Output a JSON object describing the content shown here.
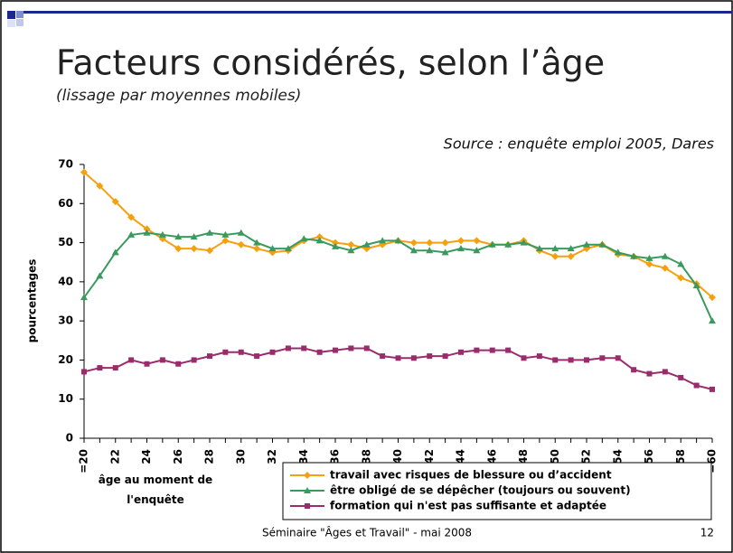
{
  "header": {
    "title": "Facteurs considérés, selon l’âge",
    "subtitle": "(lissage par moyennes mobiles)",
    "source": "Source : enquête emploi 2005, Dares"
  },
  "chart_data": {
    "type": "line",
    "ylabel": "pourcentages",
    "xlabel": "âge au moment de l'enquête",
    "categories": [
      "=20",
      null,
      "22",
      null,
      "24",
      null,
      "26",
      null,
      "28",
      null,
      "30",
      null,
      "32",
      null,
      "34",
      null,
      "36",
      null,
      "38",
      null,
      "40",
      null,
      "42",
      null,
      "44",
      null,
      "46",
      null,
      "48",
      null,
      "50",
      null,
      "52",
      null,
      "54",
      null,
      "56",
      null,
      "58",
      null,
      "=60"
    ],
    "ylim": [
      0,
      70
    ],
    "yticks": [
      0,
      10,
      20,
      30,
      40,
      50,
      60,
      70
    ],
    "legend": "bottom",
    "series": [
      {
        "name": "travail avec risques de blessure ou d’accident",
        "color": "#f5a00f",
        "marker": "diamond",
        "values": [
          68,
          64.5,
          60.5,
          56.5,
          53.5,
          51,
          48.5,
          48.5,
          48,
          50.5,
          49.5,
          48.5,
          47.5,
          48,
          50.5,
          51.5,
          50,
          49.5,
          48.5,
          49.5,
          50.5,
          50,
          50,
          50,
          50.5,
          50.5,
          49.5,
          49.5,
          50.5,
          48,
          46.5,
          46.5,
          48.5,
          49.5,
          47,
          46.5,
          44.5,
          43.5,
          41,
          39.5,
          36
        ]
      },
      {
        "name": "être obligé de se dépêcher (toujours ou souvent)",
        "color": "#3a9a5e",
        "marker": "triangle",
        "values": [
          36,
          41.5,
          47.5,
          52,
          52.5,
          52,
          51.5,
          51.5,
          52.5,
          52,
          52.5,
          50,
          48.5,
          48.5,
          51,
          50.5,
          49,
          48,
          49.5,
          50.5,
          50.5,
          48,
          48,
          47.5,
          48.5,
          48,
          49.5,
          49.5,
          50,
          48.5,
          48.5,
          48.5,
          49.5,
          49.5,
          47.5,
          46.5,
          46,
          46.5,
          44.5,
          39,
          30
        ]
      },
      {
        "name": "formation qui n'est pas suffisante et adaptée",
        "color": "#9b2c6b",
        "marker": "square",
        "values": [
          17,
          18,
          18,
          20,
          19,
          20,
          19,
          20,
          21,
          22,
          22,
          21,
          22,
          23,
          23,
          22,
          22.5,
          23,
          23,
          21,
          20.5,
          20.5,
          21,
          21,
          22,
          22.5,
          22.5,
          22.5,
          20.5,
          21,
          20,
          20,
          20,
          20.5,
          20.5,
          17.5,
          16.5,
          17,
          15.5,
          13.5,
          12.5
        ]
      }
    ]
  },
  "footer": {
    "text": "Séminaire \"Âges et Travail\" - mai 2008",
    "page": "12"
  }
}
